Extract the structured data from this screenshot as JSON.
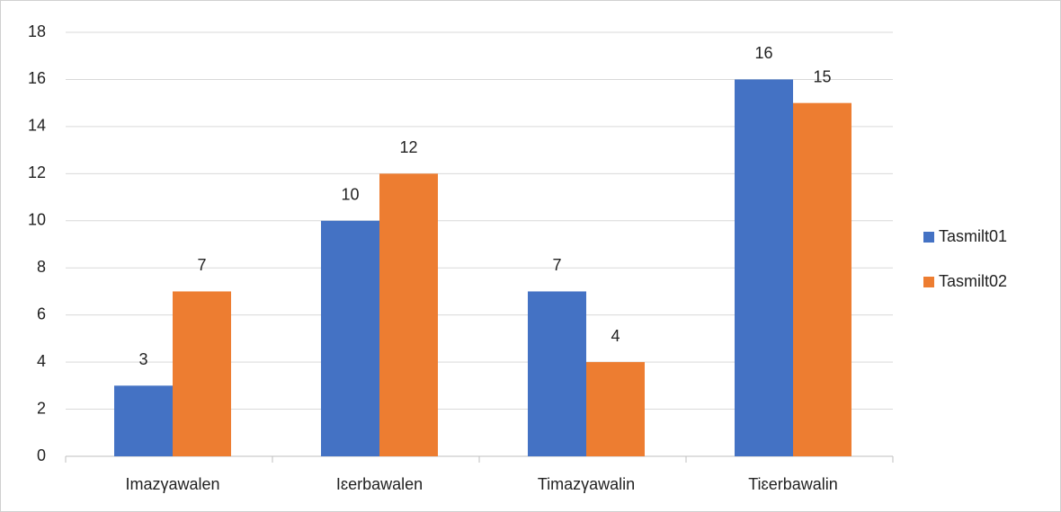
{
  "chart_data": {
    "type": "bar",
    "categories": [
      "Imazγawalen",
      "Iɛerbawalen",
      "Timazγawalin",
      "Tiɛerbawalin"
    ],
    "series": [
      {
        "name": "Tasmilt01",
        "color": "#4472c4",
        "values": [
          3,
          10,
          7,
          16
        ]
      },
      {
        "name": "Tasmilt02",
        "color": "#ed7d31",
        "values": [
          7,
          12,
          4,
          15
        ]
      }
    ],
    "ylim": [
      0,
      18
    ],
    "yticks": [
      0,
      2,
      4,
      6,
      8,
      10,
      12,
      14,
      16,
      18
    ],
    "grid": true,
    "legend": "right"
  }
}
